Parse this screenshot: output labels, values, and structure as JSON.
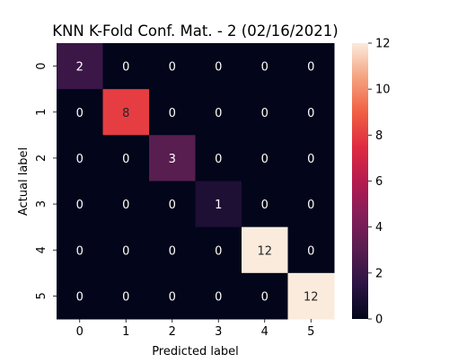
{
  "chart_data": {
    "type": "heatmap",
    "title": "KNN K-Fold Conf. Mat. - 2 (02/16/2021)",
    "xlabel": "Predicted label",
    "ylabel": "Actual label",
    "x_categories": [
      "0",
      "1",
      "2",
      "3",
      "4",
      "5"
    ],
    "y_categories": [
      "0",
      "1",
      "2",
      "3",
      "4",
      "5"
    ],
    "values": [
      [
        2,
        0,
        0,
        0,
        0,
        0
      ],
      [
        0,
        8,
        0,
        0,
        0,
        0
      ],
      [
        0,
        0,
        3,
        0,
        0,
        0
      ],
      [
        0,
        0,
        0,
        1,
        0,
        0
      ],
      [
        0,
        0,
        0,
        0,
        12,
        0
      ],
      [
        0,
        0,
        0,
        0,
        0,
        12
      ]
    ],
    "colorbar": {
      "range": [
        0,
        12
      ],
      "ticks": [
        "0",
        "2",
        "4",
        "6",
        "8",
        "10",
        "12"
      ]
    },
    "colormap": "rocket",
    "grid": false
  }
}
